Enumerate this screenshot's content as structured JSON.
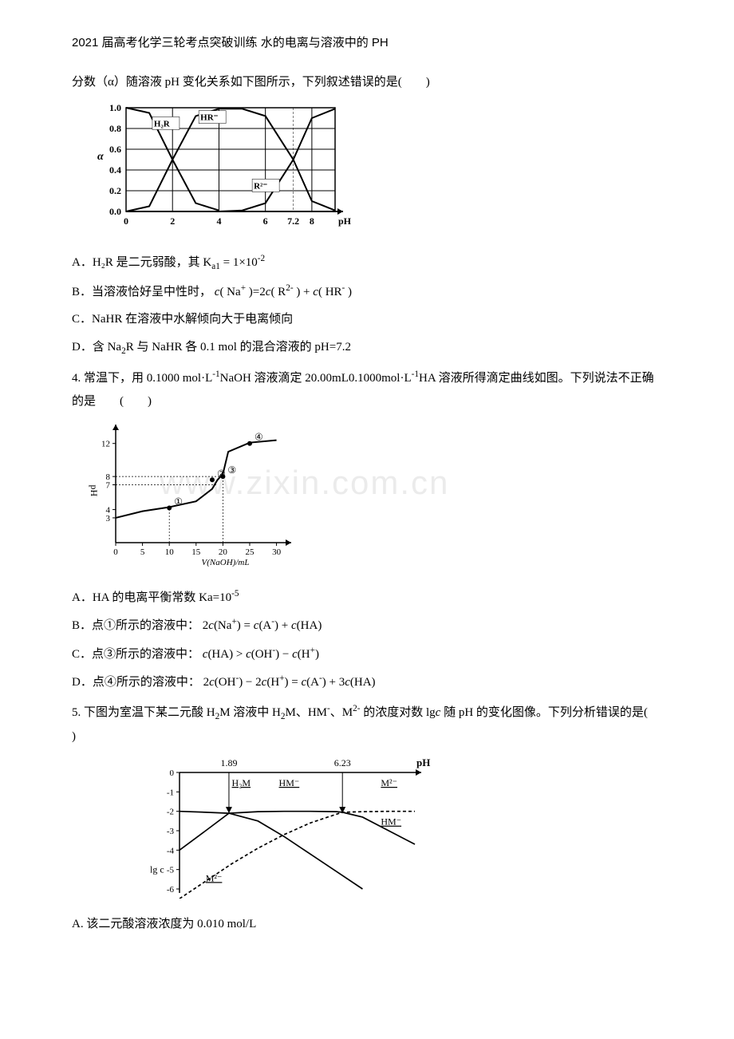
{
  "header": "2021 届高考化学三轮考点突破训练 水的电离与溶液中的 PH",
  "q3": {
    "intro": "分数（α）随溶液 pH 变化关系如下图所示，下列叙述错误的是(　　)",
    "chart": {
      "type": "line",
      "background": "#ffffff",
      "grid_color": "#000000",
      "line_color": "#000000",
      "line_width": 2,
      "xlabel": "pH",
      "ylabel": "α",
      "ylabel_fontsize": 14,
      "xlim": [
        0,
        9
      ],
      "ylim": [
        0,
        1.0
      ],
      "xticks": [
        0,
        2,
        4,
        6,
        7.2,
        8
      ],
      "yticks": [
        0,
        0.2,
        0.4,
        0.6,
        0.8,
        1.0
      ],
      "series": [
        {
          "label": "H₂R",
          "label_pos": [
            1.2,
            0.82
          ],
          "points": [
            [
              0,
              1.0
            ],
            [
              1,
              0.95
            ],
            [
              2,
              0.5
            ],
            [
              3,
              0.08
            ],
            [
              4,
              0.01
            ]
          ]
        },
        {
          "label": "HR⁻",
          "label_pos": [
            3.2,
            0.88
          ],
          "points": [
            [
              0,
              0.0
            ],
            [
              1,
              0.05
            ],
            [
              2,
              0.5
            ],
            [
              3,
              0.92
            ],
            [
              4,
              0.99
            ],
            [
              5,
              0.99
            ],
            [
              6,
              0.92
            ],
            [
              7.2,
              0.5
            ],
            [
              8,
              0.1
            ],
            [
              9,
              0.01
            ]
          ]
        },
        {
          "label": "R²⁻",
          "label_pos": [
            5.5,
            0.22
          ],
          "points": [
            [
              4,
              0.0
            ],
            [
              5,
              0.01
            ],
            [
              6,
              0.08
            ],
            [
              7.2,
              0.5
            ],
            [
              8,
              0.9
            ],
            [
              9,
              0.99
            ]
          ]
        }
      ]
    },
    "optA_pre": "A．H₂R 是二元弱酸，其",
    "optA_eq": "K_a1 = 1×10⁻²",
    "optB_pre": "B．当溶液恰好呈中性时，",
    "optB_eq": "c(Na⁺)=2c(R²⁻) + c(HR⁻)",
    "optC": "C．NaHR 在溶液中水解倾向大于电离倾向",
    "optD_pre": "D．含",
    "optD_mid": "Na₂R",
    "optD_post": " 与 NaHR 各 0.1 mol 的混合溶液的 pH=7.2"
  },
  "q4": {
    "intro_a": "4. 常温下，用 0.1000 ",
    "intro_b": "mol·L⁻¹",
    "intro_c": "NaOH 溶液滴定 20.00mL0.1000",
    "intro_d": "mol·L⁻¹",
    "intro_e": "HA 溶液所得滴定曲线如图。下列说法不正确的是　　(　　)",
    "chart": {
      "type": "line",
      "background": "#ffffff",
      "axis_color": "#000000",
      "line_color": "#000000",
      "line_width": 2,
      "xlabel": "V(NaOH)/mL",
      "ylabel": "pH",
      "xlim": [
        0,
        32
      ],
      "ylim": [
        0,
        14
      ],
      "xticks": [
        0,
        5,
        10,
        15,
        20,
        25,
        30
      ],
      "yticks": [
        3,
        4,
        7,
        8,
        12
      ],
      "markers": [
        "①",
        "②",
        "③",
        "④"
      ],
      "marker_pos": [
        [
          10,
          4.2
        ],
        [
          18,
          7.6
        ],
        [
          20,
          8
        ],
        [
          25,
          12
        ]
      ],
      "curve": [
        [
          0,
          3
        ],
        [
          5,
          3.8
        ],
        [
          10,
          4.3
        ],
        [
          15,
          5
        ],
        [
          18,
          6.5
        ],
        [
          19,
          7.6
        ],
        [
          20,
          8.3
        ],
        [
          21,
          11
        ],
        [
          25,
          12.1
        ],
        [
          30,
          12.4
        ]
      ]
    },
    "optA": "A．HA 的电离平衡常数 Ka=10⁻⁵",
    "optB_pre": "B．点①所示的溶液中：",
    "optB_eq": "2c(Na⁺) = c(A⁻) + c(HA)",
    "optC_pre": "C．点③所示的溶液中：",
    "optC_eq": "c(HA) > c(OH⁻) − c(H⁺)",
    "optD_pre": "D．点④所示的溶液中：",
    "optD_eq": "2c(OH⁻) − 2c(H⁺) = c(A⁻) + 3c(HA)"
  },
  "q5": {
    "intro": "5. 下图为室温下某二元酸 H₂M 溶液中 H₂M、HM⁻、M²⁻ 的浓度对数 lgc 随 pH 的变化图像。下列分析错误的是(　 )",
    "chart": {
      "type": "line",
      "background": "#ffffff",
      "axis_color": "#000000",
      "xlabel": "pH",
      "ylabel": "lg c",
      "xlim": [
        0,
        9
      ],
      "ylim": [
        -6,
        0
      ],
      "yticks": [
        0,
        -1,
        -2,
        -3,
        -4,
        -5,
        -6
      ],
      "top_marks": [
        1.89,
        6.23
      ],
      "series": [
        {
          "label": "H₂M",
          "style": "solid",
          "label_pos": [
            2.0,
            -0.7
          ],
          "points": [
            [
              0,
              -2.0
            ],
            [
              1,
              -2.05
            ],
            [
              1.89,
              -2.1
            ],
            [
              3,
              -2.5
            ],
            [
              4,
              -3.3
            ],
            [
              5,
              -4.2
            ],
            [
              6,
              -5.1
            ],
            [
              7,
              -6
            ]
          ]
        },
        {
          "label": "HM⁻",
          "style": "solid",
          "label_pos": [
            3.8,
            -0.7
          ],
          "points": [
            [
              0,
              -4
            ],
            [
              1,
              -3
            ],
            [
              1.89,
              -2.1
            ],
            [
              3,
              -2.02
            ],
            [
              4,
              -2.0
            ],
            [
              5,
              -2.0
            ],
            [
              6,
              -2.02
            ],
            [
              6.23,
              -2.05
            ],
            [
              7,
              -2.3
            ],
            [
              8,
              -3.0
            ],
            [
              9,
              -3.7
            ]
          ],
          "label2": "HM⁻",
          "label2_pos": [
            7.7,
            -2.7
          ]
        },
        {
          "label": "M²⁻",
          "style": "dashed",
          "label_pos": [
            1.0,
            -5.6
          ],
          "points": [
            [
              0,
              -6.5
            ],
            [
              1,
              -5.6
            ],
            [
              2,
              -4.7
            ],
            [
              3,
              -3.9
            ],
            [
              4,
              -3.2
            ],
            [
              5,
              -2.6
            ],
            [
              6,
              -2.15
            ],
            [
              6.23,
              -2.05
            ],
            [
              7,
              -2.02
            ],
            [
              8,
              -2.0
            ],
            [
              9,
              -2.0
            ]
          ],
          "label2": "M²⁻",
          "label2_pos": [
            7.7,
            -0.7
          ]
        }
      ]
    },
    "optA": "A. 该二元酸溶液浓度为 0.010 mol/L"
  },
  "watermark": "www.zixin.com.cn"
}
